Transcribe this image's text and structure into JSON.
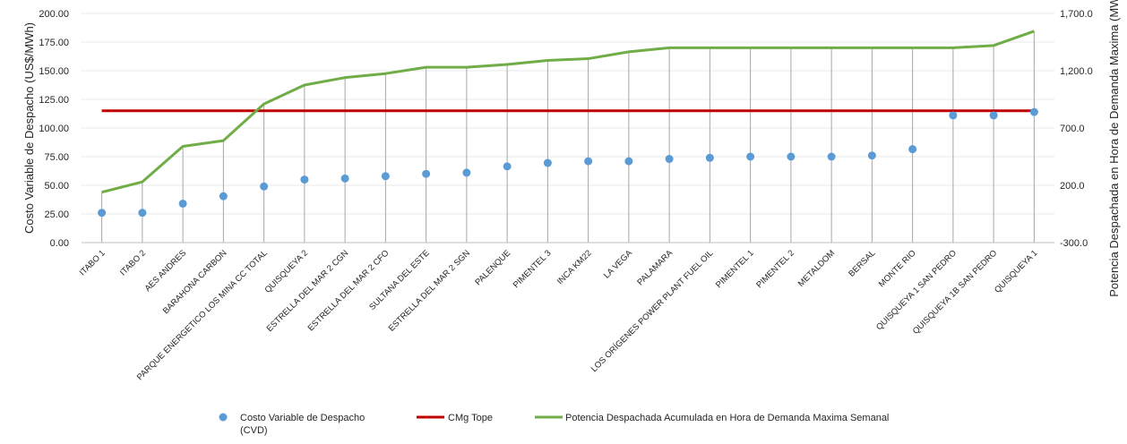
{
  "chart_data": {
    "type": "line",
    "categories": [
      "ITABO 1",
      "ITABO 2",
      "AES ANDRES",
      "BARAHONA CARBON",
      "PARQUE ENERGETICO LOS MINA CC TOTAL",
      "QUISQUEYA 2",
      "ESTRELLA DEL MAR 2 CGN",
      "ESTRELLA DEL MAR 2 CFO",
      "SULTANA DEL ESTE",
      "ESTRELLA DEL MAR 2 SGN",
      "PALENQUE",
      "PIMENTEL 3",
      "INCA KM22",
      "LA VEGA",
      "PALAMARA",
      "LOS ORÍGENES POWER PLANT FUEL OIL",
      "PIMENTEL 1",
      "PIMENTEL 2",
      "METALDOM",
      "BERSAL",
      "MONTE RIO",
      "QUISQUEYA 1 SAN PEDRO",
      "QUISQUEYA 1B SAN PEDRO",
      "QUISQUEYA 1"
    ],
    "series": [
      {
        "name": "Costo Variable de Despacho (CVD)",
        "kind": "scatter",
        "axis": "left",
        "color": "#5B9BD5",
        "values": [
          26.0,
          26.0,
          34.0,
          40.5,
          49.0,
          55.0,
          56.0,
          58.0,
          60.0,
          61.0,
          66.5,
          69.5,
          71.0,
          71.0,
          73.0,
          74.0,
          75.0,
          75.0,
          75.0,
          76.0,
          81.5,
          111.0,
          111.0,
          114.0
        ]
      },
      {
        "name": "CMg Tope",
        "kind": "line",
        "axis": "left",
        "color": "#C00000",
        "values": [
          115.0,
          115.0,
          115.0,
          115.0,
          115.0,
          115.0,
          115.0,
          115.0,
          115.0,
          115.0,
          115.0,
          115.0,
          115.0,
          115.0,
          115.0,
          115.0,
          115.0,
          115.0,
          115.0,
          115.0,
          115.0,
          115.0,
          115.0,
          115.0
        ]
      },
      {
        "name": "Potencia Despachada Acumulada en Hora de Demanda Maxima Semanal",
        "kind": "line",
        "axis": "right",
        "color": "#70AD47",
        "values": [
          140,
          230,
          540,
          590,
          910,
          1075,
          1140,
          1175,
          1230,
          1230,
          1255,
          1290,
          1305,
          1365,
          1400,
          1400,
          1400,
          1400,
          1400,
          1400,
          1400,
          1400,
          1420,
          1545
        ]
      }
    ],
    "y_left": {
      "label": "Costo Variable de Despacho (US$/MWh)",
      "min": 0,
      "max": 200,
      "ticks": [
        "0.00",
        "25.00",
        "50.00",
        "75.00",
        "100.00",
        "125.00",
        "150.00",
        "175.00",
        "200.00"
      ]
    },
    "y_right": {
      "label": "Potencia Despachada en Hora de Demanda Maxima (MW)",
      "min": -300,
      "max": 1700,
      "ticks": [
        "-300.0",
        "200.0",
        "700.0",
        "1,200.0",
        "1,700.0"
      ]
    },
    "grid": true,
    "legend_position": "bottom",
    "drop_line_color": "#A6A6A6",
    "grid_color": "#E8E8E8",
    "axis_color": "#BFBFBF"
  }
}
